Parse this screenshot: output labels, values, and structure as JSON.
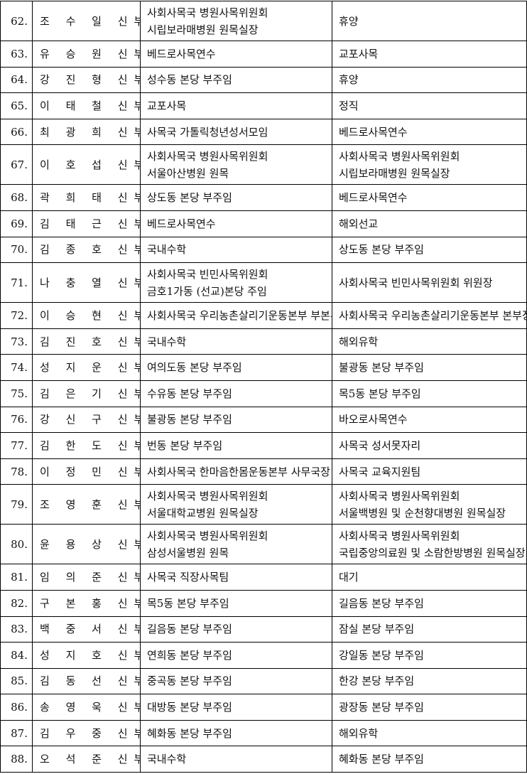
{
  "rows": [
    {
      "num": "62.",
      "name": "조 수 일 신부",
      "from": [
        "사회사목국 병원사목위원회",
        "시립보라매병원 원목실장"
      ],
      "to": [
        "휴양"
      ]
    },
    {
      "num": "63.",
      "name": "유 승 원 신부",
      "from": [
        "베드로사목연수"
      ],
      "to": [
        "교포사목"
      ]
    },
    {
      "num": "64.",
      "name": "강 진 형 신부",
      "from": [
        "성수동 본당 부주임"
      ],
      "to": [
        "휴양"
      ]
    },
    {
      "num": "65.",
      "name": "이 태 철 신부",
      "from": [
        "교포사목"
      ],
      "to": [
        "정직"
      ]
    },
    {
      "num": "66.",
      "name": "최 광 희 신부",
      "from": [
        "사목국 가톨릭청년성서모임"
      ],
      "to": [
        "베드로사목연수"
      ]
    },
    {
      "num": "67.",
      "name": "이 호 섭 신부",
      "from": [
        "사회사목국 병원사목위원회",
        "서울아산병원 원목"
      ],
      "to": [
        "사회사목국 병원사목위원회",
        "시립보라매병원 원목실장"
      ]
    },
    {
      "num": "68.",
      "name": "곽 희 태 신부",
      "from": [
        "상도동 본당 부주임"
      ],
      "to": [
        "베드로사목연수"
      ]
    },
    {
      "num": "69.",
      "name": "김 태 근 신부",
      "from": [
        "베드로사목연수"
      ],
      "to": [
        "해외선교"
      ]
    },
    {
      "num": "70.",
      "name": "김 종 호 신부",
      "from": [
        "국내수학"
      ],
      "to": [
        "상도동 본당 부주임"
      ]
    },
    {
      "num": "71.",
      "name": "나 충 열 신부",
      "from": [
        "사회사목국 빈민사목위원회",
        "금호1가동 (선교)본당 주임"
      ],
      "to": [
        "사회사목국 빈민사목위원회 위원장"
      ]
    },
    {
      "num": "72.",
      "name": "이 승 현 신부",
      "from": [
        "사회사목국 우리농촌살리기운동본부 부본부장"
      ],
      "to": [
        "사회사목국 우리농촌살리기운동본부 본부장"
      ]
    },
    {
      "num": "73.",
      "name": "김 진 호 신부",
      "from": [
        "국내수학"
      ],
      "to": [
        "해외유학"
      ]
    },
    {
      "num": "74.",
      "name": "성 지 운 신부",
      "from": [
        "여의도동 본당 부주임"
      ],
      "to": [
        "불광동 본당 부주임"
      ]
    },
    {
      "num": "75.",
      "name": "김 은 기 신부",
      "from": [
        "수유동 본당 부주임"
      ],
      "to": [
        "목5동 본당 부주임"
      ]
    },
    {
      "num": "76.",
      "name": "강 신 구 신부",
      "from": [
        "불광동 본당 부주임"
      ],
      "to": [
        "바오로사목연수"
      ]
    },
    {
      "num": "77.",
      "name": "김 한 도 신부",
      "from": [
        "번동 본당 부주임"
      ],
      "to": [
        "사목국 성서못자리"
      ]
    },
    {
      "num": "78.",
      "name": "이 정 민 신부",
      "from": [
        "사회사목국 한마음한몸운동본부 사무국장"
      ],
      "to": [
        "사목국 교육지원팀"
      ]
    },
    {
      "num": "79.",
      "name": "조 영 훈 신부",
      "from": [
        "사회사목국 병원사목위원회",
        "서울대학교병원 원목실장"
      ],
      "to": [
        "사회사목국 병원사목위원회",
        "서울백병원 및 순천향대병원 원목실장"
      ]
    },
    {
      "num": "80.",
      "name": "윤 용 상 신부",
      "from": [
        "사회사목국 병원사목위원회",
        "삼성서울병원 원목"
      ],
      "to": [
        "사회사목국 병원사목위원회",
        "국립중앙의료원 및 소람한방병원 원목실장"
      ]
    },
    {
      "num": "81.",
      "name": "임 의 준 신부",
      "from": [
        "사목국 직장사목팀"
      ],
      "to": [
        "대기"
      ]
    },
    {
      "num": "82.",
      "name": "구 본 홍 신부",
      "from": [
        "목5동 본당 부주임"
      ],
      "to": [
        "길음동 본당 부주임"
      ]
    },
    {
      "num": "83.",
      "name": "백 중 서 신부",
      "from": [
        "길음동 본당 부주임"
      ],
      "to": [
        "잠실 본당 부주임"
      ]
    },
    {
      "num": "84.",
      "name": "성 지 호 신부",
      "from": [
        "연희동 본당 부주임"
      ],
      "to": [
        "강일동 본당 부주임"
      ]
    },
    {
      "num": "85.",
      "name": "김 동 선 신부",
      "from": [
        "중곡동 본당 부주임"
      ],
      "to": [
        "한강 본당 부주임"
      ]
    },
    {
      "num": "86.",
      "name": "송 영 욱 신부",
      "from": [
        "대방동 본당 부주임"
      ],
      "to": [
        "광장동 본당 부주임"
      ]
    },
    {
      "num": "87.",
      "name": "김 우 중 신부",
      "from": [
        "혜화동 본당 부주임"
      ],
      "to": [
        "해외유학"
      ]
    },
    {
      "num": "88.",
      "name": "오 석 준 신부",
      "from": [
        "국내수학"
      ],
      "to": [
        "혜화동 본당 부주임"
      ]
    }
  ]
}
